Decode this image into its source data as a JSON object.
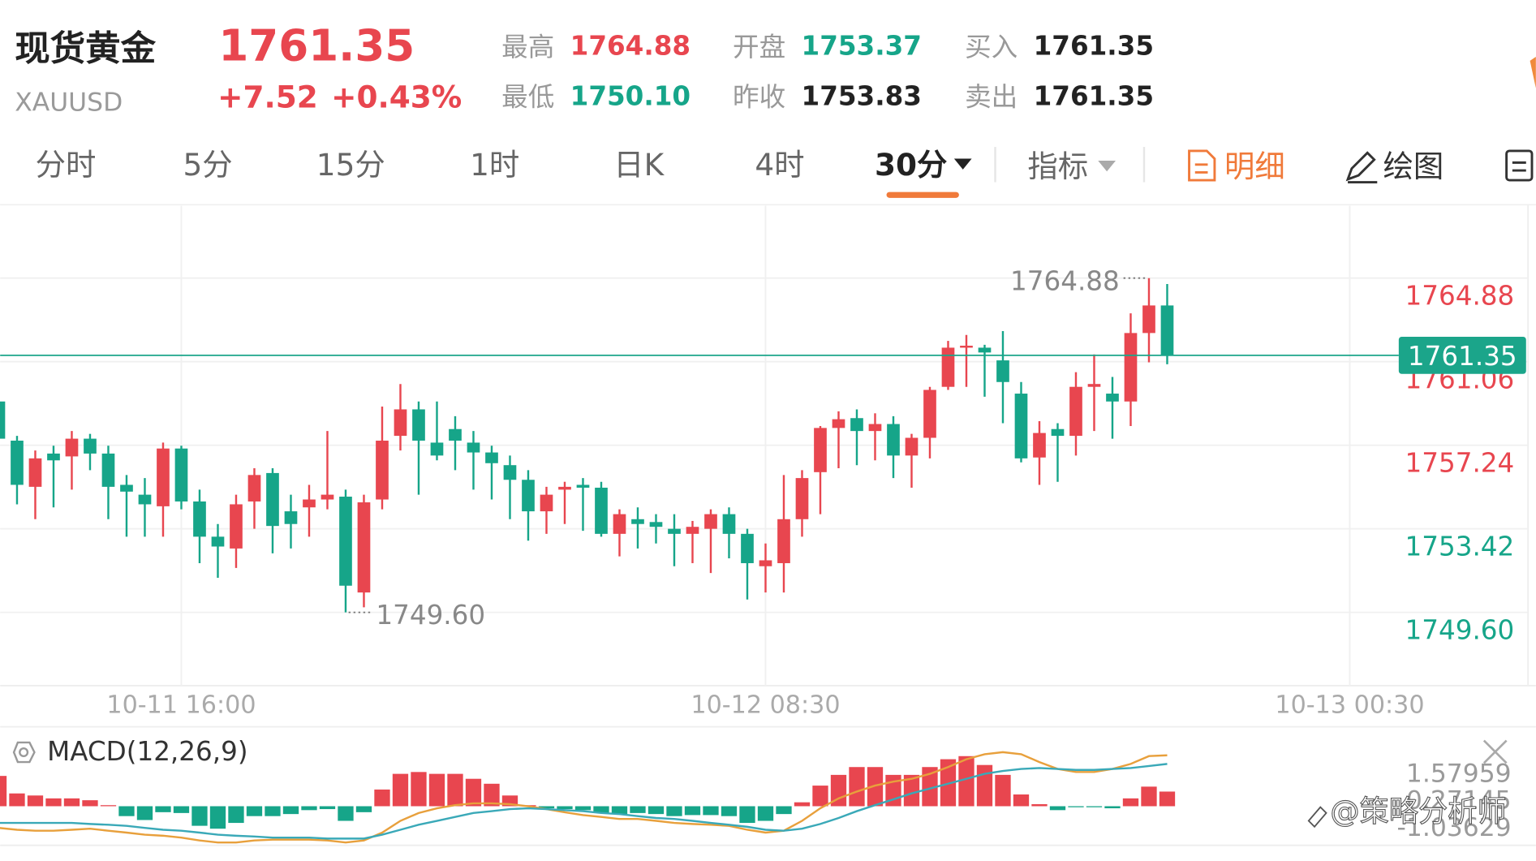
{
  "header": {
    "name": "现货黄金",
    "code": "XAUUSD",
    "price": "1761.35",
    "change": "+7.52",
    "change_pct": "+0.43%",
    "stats": [
      {
        "label": "最高",
        "value": "1764.88"
      },
      {
        "label": "最低",
        "value": "1750.10"
      },
      {
        "label": "开盘",
        "value": "1753.37"
      },
      {
        "label": "昨收",
        "value": "1753.83"
      },
      {
        "label": "买入",
        "value": "1761.35"
      },
      {
        "label": "卖出",
        "value": "1761.35"
      }
    ]
  },
  "tabs": [
    "分时",
    "5分",
    "15分",
    "1时",
    "日K",
    "4时",
    "30分",
    "指标",
    "明细",
    "绘图"
  ],
  "watermark": "@策略分析师",
  "chart_data": [
    {
      "type": "candlestick",
      "up_color": "#e8464f",
      "down_color": "#16a589",
      "grid": true,
      "xlim": [
        0,
        84
      ],
      "xticks": [
        {
          "value": 10,
          "label": "10-11 16:00"
        },
        {
          "value": 42,
          "label": "10-12 08:30"
        },
        {
          "value": 74,
          "label": "10-13 00:30"
        }
      ],
      "ylim": [
        1746.25,
        1768.19
      ],
      "yticks": [
        {
          "value": 1749.6,
          "label": "1749.60"
        },
        {
          "value": 1753.42,
          "label": "1753.42"
        },
        {
          "value": 1757.24,
          "label": "1757.24"
        },
        {
          "value": 1761.06,
          "label": "1761.06"
        },
        {
          "value": 1764.88,
          "label": "1764.88"
        }
      ],
      "last": {
        "value": 1761.35,
        "label": "1761.35",
        "color": "#1ba58a"
      },
      "high_label": {
        "value": 1764.88,
        "label": "1764.88"
      },
      "low_label": {
        "value": 1749.6,
        "label": "1749.60"
      },
      "open": [
        1759.24,
        1757.45,
        1755.34,
        1756.86,
        1756.73,
        1757.54,
        1756.86,
        1755.43,
        1754.98,
        1754.45,
        1757.09,
        1754.67,
        1753.06,
        1752.52,
        1754.67,
        1755.97,
        1754.22,
        1754.4,
        1754.76,
        1754.89,
        1750.51,
        1754.76,
        1757.67,
        1758.88,
        1757.36,
        1757.98,
        1757.36,
        1756.91,
        1756.33,
        1755.66,
        1754.22,
        1755.21,
        1755.43,
        1755.3,
        1753.19,
        1753.86,
        1753.73,
        1753.42,
        1753.19,
        1753.42,
        1754.09,
        1753.19,
        1751.71,
        1751.85,
        1753.86,
        1756.01,
        1758.03,
        1758.48,
        1757.89,
        1758.21,
        1756.77,
        1757.58,
        1759.91,
        1761.7,
        1761.7,
        1761.12,
        1759.6,
        1756.68,
        1757.98,
        1757.67,
        1759.91,
        1759.6,
        1759.24,
        1762.37,
        1763.63
      ],
      "high": [
        1759.91,
        1757.67,
        1757.0,
        1757.22,
        1757.89,
        1757.76,
        1757.22,
        1755.88,
        1755.74,
        1757.36,
        1757.22,
        1755.21,
        1753.64,
        1754.98,
        1756.19,
        1756.19,
        1754.98,
        1755.43,
        1757.89,
        1755.21,
        1754.98,
        1759.01,
        1760.04,
        1759.24,
        1759.24,
        1758.57,
        1757.89,
        1757.22,
        1756.77,
        1756.1,
        1755.34,
        1755.57,
        1755.74,
        1755.57,
        1754.31,
        1754.4,
        1754.09,
        1754.09,
        1753.78,
        1754.31,
        1754.4,
        1753.42,
        1752.75,
        1755.88,
        1756.1,
        1758.12,
        1758.79,
        1758.88,
        1758.7,
        1758.57,
        1757.76,
        1759.91,
        1762.01,
        1762.28,
        1761.83,
        1762.46,
        1760.13,
        1758.34,
        1758.25,
        1760.58,
        1761.39,
        1760.36,
        1763.27,
        1764.88,
        1764.61
      ],
      "low": [
        1757.22,
        1754.54,
        1753.86,
        1754.4,
        1755.21,
        1756.1,
        1753.86,
        1753.06,
        1753.06,
        1753.06,
        1754.31,
        1751.85,
        1751.18,
        1751.63,
        1753.42,
        1752.3,
        1752.52,
        1753.06,
        1754.31,
        1749.6,
        1749.83,
        1754.31,
        1757.0,
        1754.98,
        1756.55,
        1756.1,
        1755.21,
        1754.76,
        1753.86,
        1752.88,
        1753.19,
        1753.64,
        1753.33,
        1753.06,
        1752.16,
        1752.52,
        1752.75,
        1751.71,
        1751.85,
        1751.4,
        1752.07,
        1750.19,
        1750.51,
        1750.51,
        1753.06,
        1754.09,
        1756.19,
        1756.33,
        1756.55,
        1755.74,
        1755.3,
        1756.64,
        1759.77,
        1759.91,
        1759.46,
        1758.25,
        1756.46,
        1755.43,
        1755.57,
        1756.77,
        1757.89,
        1757.54,
        1758.12,
        1761.03,
        1760.94
      ],
      "close": [
        1757.54,
        1755.43,
        1756.64,
        1756.55,
        1757.54,
        1756.86,
        1755.34,
        1755.12,
        1754.54,
        1757.09,
        1754.67,
        1753.06,
        1752.61,
        1754.54,
        1755.88,
        1753.55,
        1753.64,
        1754.76,
        1754.98,
        1750.82,
        1754.63,
        1757.45,
        1758.88,
        1757.45,
        1756.77,
        1757.45,
        1756.91,
        1756.42,
        1755.66,
        1754.22,
        1754.98,
        1755.34,
        1755.3,
        1753.19,
        1754.09,
        1753.64,
        1753.51,
        1753.19,
        1753.51,
        1754.09,
        1753.19,
        1751.85,
        1751.98,
        1753.86,
        1755.74,
        1758.03,
        1758.43,
        1757.89,
        1758.21,
        1756.77,
        1757.58,
        1759.77,
        1761.7,
        1761.79,
        1761.48,
        1760.13,
        1756.64,
        1757.8,
        1757.67,
        1759.91,
        1760.04,
        1759.24,
        1762.37,
        1763.63,
        1761.35
      ]
    },
    {
      "type": "macd",
      "title": "MACD(12,26,9)",
      "up_color": "#e8464f",
      "down_color": "#16a589",
      "grid": false,
      "xlim": [
        0,
        84
      ],
      "ylim": [
        -1.85,
        3.71
      ],
      "yticks": [
        1.57959,
        0.27145,
        -1.03629
      ],
      "values": [
        1.47,
        0.62,
        0.52,
        0.38,
        0.38,
        0.29,
        0.05,
        -0.48,
        -0.67,
        -0.29,
        -0.33,
        -0.95,
        -1.09,
        -0.81,
        -0.48,
        -0.48,
        -0.38,
        -0.19,
        -0.14,
        -0.71,
        -0.29,
        0.81,
        1.57,
        1.66,
        1.57,
        1.57,
        1.33,
        1.09,
        0.52,
        0.05,
        -0.1,
        -0.14,
        -0.19,
        -0.33,
        -0.38,
        -0.33,
        -0.38,
        -0.48,
        -0.43,
        -0.43,
        -0.48,
        -0.81,
        -0.71,
        -0.38,
        0.19,
        1.0,
        1.52,
        1.9,
        1.9,
        1.52,
        1.52,
        1.9,
        2.28,
        2.43,
        2.0,
        1.52,
        0.57,
        0.1,
        -0.19,
        -0.05,
        -0.05,
        -0.1,
        0.38,
        0.95,
        0.71
      ],
      "series": [
        {
          "color": "#e8a03c",
          "values": [
            -1.05,
            -1.14,
            -1.19,
            -1.19,
            -1.14,
            -1.09,
            -1.19,
            -1.28,
            -1.38,
            -1.43,
            -1.52,
            -1.66,
            -1.76,
            -1.76,
            -1.66,
            -1.62,
            -1.62,
            -1.62,
            -1.66,
            -1.76,
            -1.66,
            -1.28,
            -0.71,
            -0.33,
            -0.1,
            0.05,
            0.14,
            0.14,
            0.1,
            0,
            -0.14,
            -0.29,
            -0.43,
            -0.52,
            -0.62,
            -0.62,
            -0.71,
            -0.81,
            -0.86,
            -0.9,
            -0.95,
            -1.14,
            -1.28,
            -1.19,
            -0.71,
            -0.1,
            0.38,
            0.71,
            1.0,
            1.19,
            1.33,
            1.57,
            1.9,
            2.28,
            2.52,
            2.62,
            2.52,
            2.14,
            1.81,
            1.66,
            1.66,
            1.81,
            2.05,
            2.43,
            2.47
          ]
        },
        {
          "color": "#3aa9b8",
          "values": [
            -0.81,
            -0.81,
            -0.81,
            -0.81,
            -0.81,
            -0.86,
            -0.9,
            -0.95,
            -1.05,
            -1.14,
            -1.19,
            -1.28,
            -1.38,
            -1.43,
            -1.47,
            -1.52,
            -1.52,
            -1.52,
            -1.57,
            -1.57,
            -1.57,
            -1.38,
            -1.14,
            -0.9,
            -0.71,
            -0.52,
            -0.33,
            -0.24,
            -0.14,
            -0.1,
            -0.14,
            -0.19,
            -0.24,
            -0.33,
            -0.38,
            -0.48,
            -0.57,
            -0.62,
            -0.71,
            -0.81,
            -0.9,
            -1.0,
            -1.14,
            -1.19,
            -1.09,
            -0.86,
            -0.57,
            -0.24,
            0.05,
            0.33,
            0.62,
            0.86,
            1.09,
            1.33,
            1.57,
            1.71,
            1.81,
            1.85,
            1.81,
            1.76,
            1.76,
            1.81,
            1.85,
            1.95,
            2.05
          ]
        }
      ]
    }
  ]
}
